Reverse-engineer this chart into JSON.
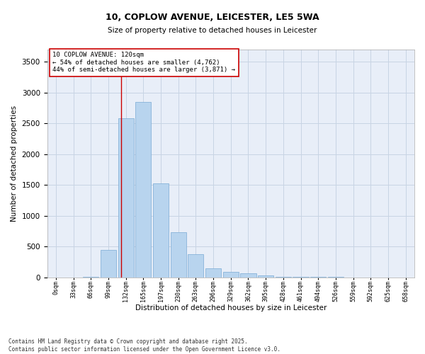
{
  "title1": "10, COPLOW AVENUE, LEICESTER, LE5 5WA",
  "title2": "Size of property relative to detached houses in Leicester",
  "xlabel": "Distribution of detached houses by size in Leicester",
  "ylabel": "Number of detached properties",
  "categories": [
    "0sqm",
    "33sqm",
    "66sqm",
    "99sqm",
    "132sqm",
    "165sqm",
    "197sqm",
    "230sqm",
    "263sqm",
    "296sqm",
    "329sqm",
    "362sqm",
    "395sqm",
    "428sqm",
    "461sqm",
    "494sqm",
    "526sqm",
    "559sqm",
    "592sqm",
    "625sqm",
    "658sqm"
  ],
  "values": [
    0,
    0,
    5,
    450,
    2580,
    2850,
    1530,
    730,
    375,
    150,
    90,
    60,
    30,
    10,
    5,
    3,
    2,
    1,
    1,
    0,
    0
  ],
  "bar_color": "#b8d4ee",
  "bar_edge_color": "#7aaad4",
  "ylim": [
    0,
    3700
  ],
  "yticks": [
    0,
    500,
    1000,
    1500,
    2000,
    2500,
    3000,
    3500
  ],
  "vline_x": 3.72,
  "vline_color": "#cc0000",
  "annotation_text": "10 COPLOW AVENUE: 120sqm\n← 54% of detached houses are smaller (4,762)\n44% of semi-detached houses are larger (3,871) →",
  "annotation_box_color": "#cc0000",
  "footer_text": "Contains HM Land Registry data © Crown copyright and database right 2025.\nContains public sector information licensed under the Open Government Licence v3.0.",
  "background_color": "#e8eef8",
  "grid_color": "#c8d4e4",
  "fig_width": 6.0,
  "fig_height": 5.0,
  "fig_dpi": 100
}
